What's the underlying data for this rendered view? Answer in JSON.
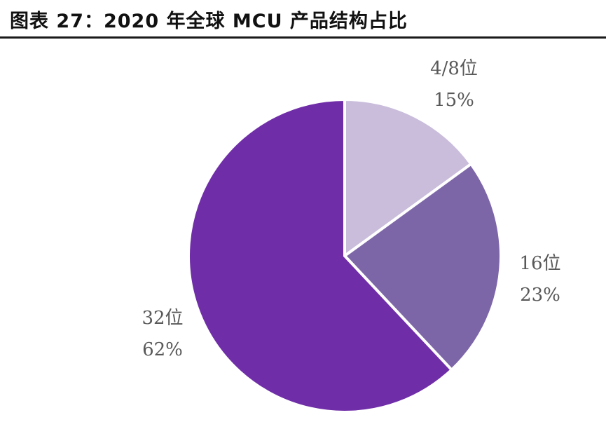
{
  "title": "图表 27：2020 年全球 MCU 产品结构占比",
  "colors": {
    "title_rule": "#1a1a1a",
    "slice_edge": "#ffffff",
    "label_text": "#595959"
  },
  "chart_data": {
    "type": "pie",
    "title": "图表 27：2020 年全球 MCU 产品结构占比",
    "slices": [
      {
        "name": "4/8位",
        "value": 15,
        "label": "15%",
        "color": "#c9bddb"
      },
      {
        "name": "16位",
        "value": 23,
        "label": "23%",
        "color": "#7d66a8"
      },
      {
        "name": "32位",
        "value": 62,
        "label": "62%",
        "color": "#6f2da8"
      }
    ],
    "start_angle": "12 o'clock",
    "direction": "clockwise",
    "legend": "none"
  }
}
